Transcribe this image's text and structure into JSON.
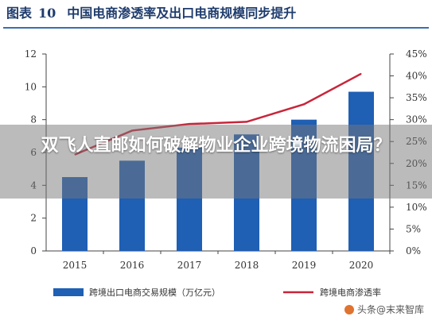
{
  "figure": {
    "label": "图表",
    "number": "10",
    "title": "中国电商渗透率及出口电商规模同步提升"
  },
  "overlay_headline": "双飞人直邮如何破解物业企业跨境物流困局？",
  "watermark": "头条@末来智库",
  "colors": {
    "bar": "#1f5fb4",
    "line": "#c8253a",
    "title": "#1f3c6d",
    "axis": "#444444"
  },
  "chart_data": {
    "type": "bar",
    "categories": [
      "2015",
      "2016",
      "2017",
      "2018",
      "2019",
      "2020"
    ],
    "series": [
      {
        "name": "跨境出口电商交易规模（万亿元）",
        "type": "bar",
        "axis": "left",
        "values": [
          4.5,
          5.5,
          6.3,
          7.1,
          8.0,
          9.7
        ]
      },
      {
        "name": "跨境电商渗透率",
        "type": "line",
        "axis": "right",
        "values": [
          22.0,
          27.5,
          29.0,
          29.5,
          33.5,
          40.5
        ]
      }
    ],
    "y_left": {
      "min": 0,
      "max": 12,
      "ticks": [
        "0",
        "2",
        "4",
        "6",
        "8",
        "10",
        "12"
      ]
    },
    "y_right": {
      "min": 0,
      "max": 45,
      "ticks": [
        "0%",
        "5%",
        "10%",
        "15%",
        "20%",
        "25%",
        "30%",
        "35%",
        "40%",
        "45%"
      ]
    },
    "grid": false,
    "legend_position": "bottom"
  }
}
